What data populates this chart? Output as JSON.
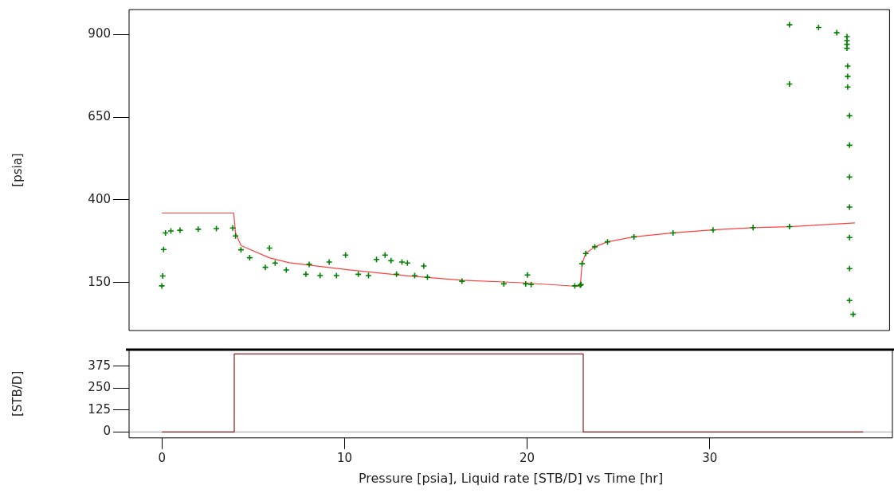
{
  "chart_data": [
    {
      "type": "scatter",
      "ylabel": "[psia]",
      "xlim": [
        -1.8,
        40
      ],
      "ylim": [
        5,
        975
      ],
      "tick_labels": "y",
      "marker": "cross",
      "grid": false,
      "legend": false,
      "yticks": [
        150,
        400,
        650,
        900
      ],
      "series": [
        {
          "type": "scatter",
          "color": "#008000",
          "x": [
            0,
            0.05,
            0.1,
            0.2,
            0.5,
            1,
            2,
            3,
            3.9,
            4.05,
            4.35,
            4.83,
            5.69,
            5.92,
            6.23,
            6.84,
            7.92,
            8.1,
            8.7,
            9.2,
            9.6,
            10.1,
            10.8,
            11.36,
            11.8,
            12.27,
            12.6,
            12.9,
            13.2,
            13.5,
            13.9,
            14.4,
            14.6,
            16.5,
            18.8,
            20.0,
            20.1,
            20.3,
            22.7,
            23.0,
            23.04,
            23.1,
            23.3,
            23.8,
            24.5,
            25.95,
            28.1,
            30.3,
            32.5,
            34.5,
            34.5,
            34.5,
            36.1,
            37.1,
            37.66,
            37.66,
            37.66,
            37.66,
            37.7,
            37.7,
            37.7,
            37.8,
            37.8,
            37.8,
            37.8,
            37.8,
            37.8,
            37.8,
            38.0
          ],
          "values": [
            140,
            170,
            250,
            300,
            306,
            308,
            311,
            313,
            315,
            291,
            249,
            225,
            196,
            254,
            209,
            188,
            175,
            205,
            171,
            212,
            171,
            233,
            175,
            171,
            220,
            233,
            216,
            175,
            212,
            209,
            171,
            200,
            166,
            154,
            146,
            146,
            173,
            144,
            140,
            142,
            144,
            207,
            238,
            258,
            273,
            288,
            300,
            309,
            316,
            319,
            929,
            750,
            921,
            905,
            893,
            881,
            870,
            858,
            804,
            773,
            741,
            654,
            565,
            469,
            378,
            286,
            192,
            96,
            54
          ]
        },
        {
          "type": "line",
          "color": "#ff4040",
          "marker": "none",
          "x": [
            0,
            3.95,
            4.05,
            4.35,
            5.9,
            7.0,
            10.3,
            13.4,
            16.5,
            19.6,
            23.0,
            23.1,
            23.3,
            23.8,
            24.5,
            25.95,
            28.1,
            30.3,
            32.5,
            34.5,
            38.1
          ],
          "values": [
            360,
            360,
            300,
            262,
            225,
            210,
            188,
            171,
            157,
            150,
            138,
            207,
            238,
            258,
            273,
            288,
            300,
            309,
            316,
            319,
            330
          ]
        }
      ]
    },
    {
      "type": "step",
      "ylabel": "[STB/D]",
      "xlabel": "Pressure [psia], Liquid rate [STB/D] vs Time [hr]",
      "xlim": [
        -1.8,
        40
      ],
      "ylim": [
        -34,
        469
      ],
      "xticks": [
        0,
        10,
        20,
        30
      ],
      "yticks": [
        0,
        125,
        250,
        375
      ],
      "grid": false,
      "legend": false,
      "marker": "none",
      "ref_lines": [
        {
          "axis": "y",
          "value": 0,
          "color": "#a0a0a0"
        }
      ],
      "series": [
        {
          "color": "#8b1a1a",
          "x": [
            0,
            3.96,
            23.07,
            38.4
          ],
          "values": [
            0,
            445,
            0,
            0
          ]
        }
      ]
    }
  ]
}
